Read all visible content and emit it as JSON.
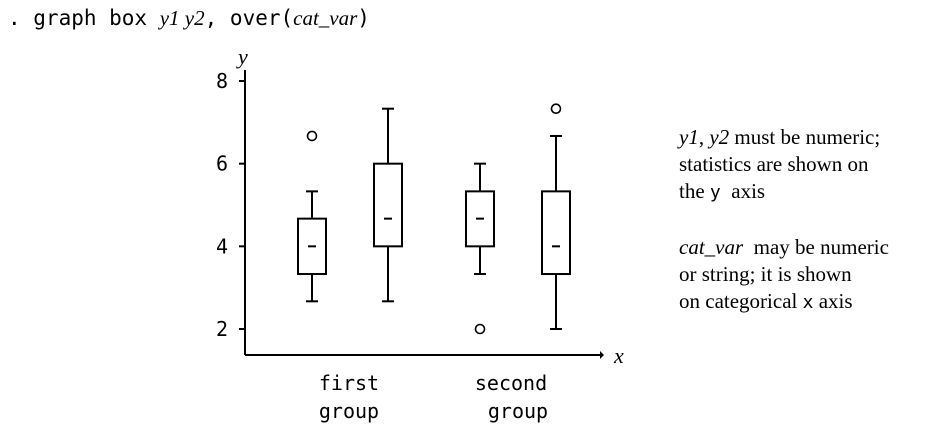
{
  "command": {
    "prompt": ". graph box ",
    "var_args": "y1 y2",
    "comma": ", ",
    "option_open": "over(",
    "option_arg": "cat_var",
    "option_close": ")"
  },
  "notes": {
    "n1_var": "y1",
    "n1_sep": ", ",
    "n1_var2": "y2",
    "n1_rest": " must be numeric;",
    "n2": "statistics are shown on",
    "n3_pre": "the ",
    "n3_axis": "y",
    "n3_post": "  axis",
    "n4_var": "cat_var",
    "n4_rest": "  may be numeric",
    "n5": "or string; it is shown",
    "n6_pre": "on categorical ",
    "n6_axis": "x",
    "n6_post": " axis"
  },
  "chart_data": {
    "type": "box",
    "ylabel": "y",
    "xlabel": "x",
    "ylim": [
      1.4,
      8.4
    ],
    "yticks": [
      2,
      4,
      6,
      8
    ],
    "groups": [
      {
        "label_line1": "first",
        "label_line2": "group"
      },
      {
        "label_line1": "second",
        "label_line2": "group"
      }
    ],
    "boxes": [
      {
        "group": 0,
        "q1": 3.33,
        "median": 4.0,
        "q3": 4.67,
        "whisker_low": 2.67,
        "whisker_high": 5.33,
        "outliers": [
          6.67
        ]
      },
      {
        "group": 0,
        "q1": 4.0,
        "median": 4.67,
        "q3": 6.0,
        "whisker_low": 2.67,
        "whisker_high": 7.33,
        "outliers": []
      },
      {
        "group": 1,
        "q1": 4.0,
        "median": 4.67,
        "q3": 5.33,
        "whisker_low": 3.33,
        "whisker_high": 6.0,
        "outliers": [
          2.0
        ]
      },
      {
        "group": 1,
        "q1": 3.33,
        "median": 4.0,
        "q3": 5.33,
        "whisker_low": 2.0,
        "whisker_high": 6.67,
        "outliers": [
          7.33
        ]
      }
    ],
    "grid": false,
    "legend": "none"
  }
}
